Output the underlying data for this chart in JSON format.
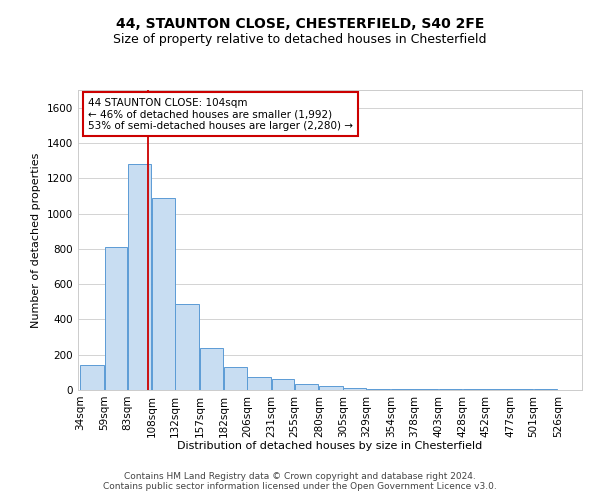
{
  "title": "44, STAUNTON CLOSE, CHESTERFIELD, S40 2FE",
  "subtitle": "Size of property relative to detached houses in Chesterfield",
  "xlabel": "Distribution of detached houses by size in Chesterfield",
  "ylabel": "Number of detached properties",
  "bar_values": [
    140,
    810,
    1280,
    1090,
    490,
    240,
    130,
    75,
    60,
    35,
    20,
    10,
    5,
    5,
    5,
    5,
    5,
    5,
    5,
    5
  ],
  "bin_labels": [
    "34sqm",
    "59sqm",
    "83sqm",
    "108sqm",
    "132sqm",
    "157sqm",
    "182sqm",
    "206sqm",
    "231sqm",
    "255sqm",
    "280sqm",
    "305sqm",
    "329sqm",
    "354sqm",
    "378sqm",
    "403sqm",
    "428sqm",
    "452sqm",
    "477sqm",
    "501sqm",
    "526sqm"
  ],
  "bin_edges": [
    34,
    59,
    83,
    108,
    132,
    157,
    182,
    206,
    231,
    255,
    280,
    305,
    329,
    354,
    378,
    403,
    428,
    452,
    477,
    501,
    526
  ],
  "bar_color": "#c8ddf2",
  "bar_edge_color": "#5b9bd5",
  "ref_line_x": 104,
  "ref_line_color": "#cc0000",
  "ylim": [
    0,
    1700
  ],
  "yticks": [
    0,
    200,
    400,
    600,
    800,
    1000,
    1200,
    1400,
    1600
  ],
  "annotation_title": "44 STAUNTON CLOSE: 104sqm",
  "annotation_line1": "← 46% of detached houses are smaller (1,992)",
  "annotation_line2": "53% of semi-detached houses are larger (2,280) →",
  "annotation_box_color": "#ffffff",
  "annotation_box_edge": "#cc0000",
  "footer1": "Contains HM Land Registry data © Crown copyright and database right 2024.",
  "footer2": "Contains public sector information licensed under the Open Government Licence v3.0.",
  "background_color": "#ffffff",
  "grid_color": "#cccccc",
  "title_fontsize": 10,
  "subtitle_fontsize": 9,
  "axis_label_fontsize": 8,
  "tick_fontsize": 7.5,
  "footer_fontsize": 6.5,
  "ann_fontsize": 7.5
}
